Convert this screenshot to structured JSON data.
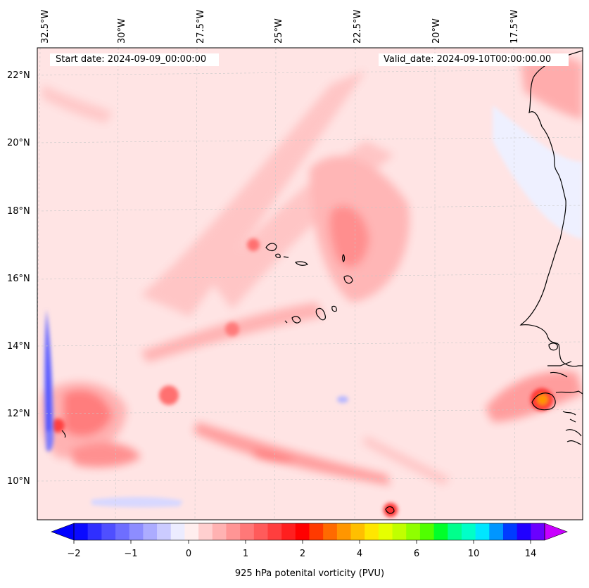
{
  "header": {
    "start_date": "Start date: 2024-09-09_00:00:00",
    "valid_date": "Valid_date: 2024-09-10T00:00:00.00"
  },
  "axes": {
    "longitude_labels": [
      "32.5°W",
      "30°W",
      "27.5°W",
      "25°W",
      "22.5°W",
      "20°W",
      "17.5°W"
    ],
    "latitude_labels": [
      "22°N",
      "20°N",
      "18°N",
      "16°N",
      "14°N",
      "12°N",
      "10°N"
    ]
  },
  "colorbar": {
    "title": "925 hPa potenital vorticity (PVU)",
    "tick_labels": [
      "−2",
      "−1",
      "0",
      "1",
      "2",
      "4",
      "6",
      "10",
      "14"
    ],
    "colors": [
      "#0a0aff",
      "#2f2fff",
      "#4f4fff",
      "#6e6eff",
      "#8d8dff",
      "#acacff",
      "#cbcbff",
      "#ececff",
      "#ffeeee",
      "#ffcfcf",
      "#ffb2b2",
      "#ff9595",
      "#ff7878",
      "#ff5b5b",
      "#ff3e3e",
      "#ff1f1f",
      "#ff0000",
      "#ff3a00",
      "#ff6a00",
      "#ff9600",
      "#ffbf00",
      "#ffe600",
      "#e6ff00",
      "#c0ff00",
      "#8fff00",
      "#50ff00",
      "#00ff2a",
      "#00ff8c",
      "#00ffc8",
      "#00e6ff",
      "#0096ff",
      "#003cff",
      "#2000ff",
      "#6a00ff"
    ],
    "under_color": "#0000ff",
    "over_color": "#c800ff"
  },
  "colors": {
    "background_field": "#ffe4e4",
    "positive_pv": "#ff9d9d",
    "strong_positive_pv": "#ff6565",
    "negative_pv": "#e8e8ff",
    "coastline": "#000000"
  }
}
